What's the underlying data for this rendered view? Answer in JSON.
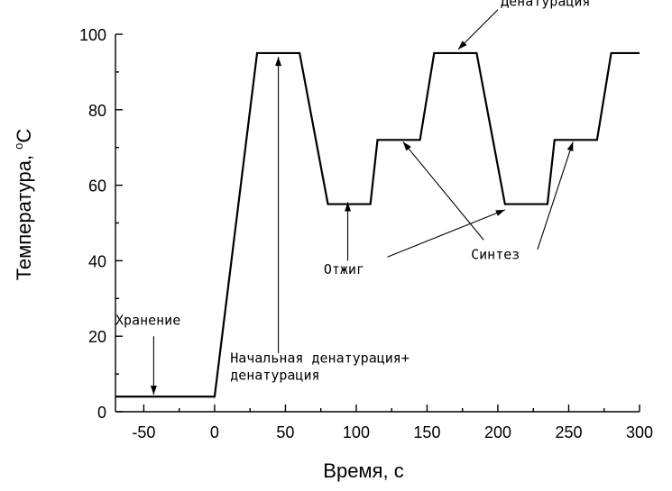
{
  "chart_data": {
    "type": "line",
    "title": "",
    "xlabel": "Время, с",
    "ylabel_text": "Температура, ",
    "ylabel_unit_degree": "o",
    "ylabel_unit": "C",
    "xlim": [
      -70,
      300
    ],
    "ylim": [
      0,
      100
    ],
    "xticks": [
      -50,
      0,
      50,
      100,
      150,
      200,
      250,
      300
    ],
    "xtick_labels": [
      "-50",
      "0",
      "50",
      "100",
      "150",
      "200",
      "250",
      "300"
    ],
    "yticks": [
      0,
      20,
      40,
      60,
      80,
      100
    ],
    "ytick_labels": [
      "0",
      "20",
      "40",
      "60",
      "80",
      "100"
    ],
    "grid": false,
    "series": [
      {
        "x": [
          -70,
          0,
          30,
          60,
          80,
          110,
          115,
          145,
          155,
          185,
          205,
          235,
          240,
          270,
          280,
          300
        ],
        "y": [
          4,
          4,
          95,
          95,
          55,
          55,
          72,
          72,
          95,
          95,
          55,
          55,
          72,
          72,
          95,
          95
        ]
      }
    ],
    "annotations": [
      {
        "text": "Хранение",
        "text_at": [
          -70,
          23
        ],
        "arrows": [
          {
            "from": [
              -43,
              20
            ],
            "to": [
              -43,
              4.5
            ]
          }
        ]
      },
      {
        "text": "Начальная денатурация+",
        "text2": "денатурация",
        "text_at": [
          11,
          13
        ],
        "arrows": [
          {
            "from": [
              45,
              15.5
            ],
            "to": [
              45,
              94
            ]
          }
        ]
      },
      {
        "text": "Денатурация",
        "text_at": [
          202,
          107.5
        ],
        "arrows": [
          {
            "from": [
              200,
              106.5
            ],
            "to": [
              172,
              96
            ]
          }
        ]
      },
      {
        "text": "Отжиг",
        "text_at": [
          77,
          36.5
        ],
        "arrows": [
          {
            "from": [
              94,
              40
            ],
            "to": [
              94,
              55.5
            ]
          },
          {
            "from": [
              122,
              41
            ],
            "to": [
              205,
              53.5
            ]
          }
        ]
      },
      {
        "text": "Синтез",
        "text_at": [
          181,
          40.5
        ],
        "arrows": [
          {
            "from": [
              190,
              45.5
            ],
            "to": [
              133,
              71.5
            ]
          },
          {
            "from": [
              228,
              43
            ],
            "to": [
              253,
              71.5
            ]
          }
        ]
      }
    ]
  }
}
